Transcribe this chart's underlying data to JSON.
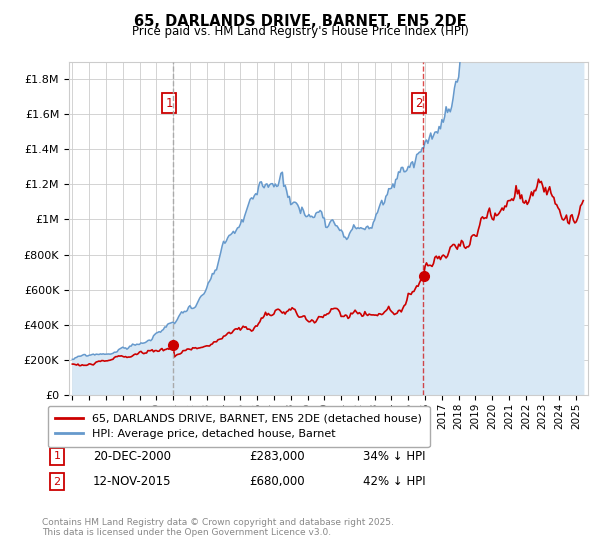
{
  "title": "65, DARLANDS DRIVE, BARNET, EN5 2DE",
  "subtitle": "Price paid vs. HM Land Registry's House Price Index (HPI)",
  "ylim": [
    0,
    1900000
  ],
  "yticks": [
    0,
    200000,
    400000,
    600000,
    800000,
    1000000,
    1200000,
    1400000,
    1600000,
    1800000
  ],
  "ytick_labels": [
    "£0",
    "£200K",
    "£400K",
    "£600K",
    "£800K",
    "£1M",
    "£1.2M",
    "£1.4M",
    "£1.6M",
    "£1.8M"
  ],
  "xmin": 1994.8,
  "xmax": 2025.7,
  "transaction1_x": 2001.0,
  "transaction1_date": "20-DEC-2000",
  "transaction1_price": "£283,000",
  "transaction1_hpi": "34% ↓ HPI",
  "transaction1_y": 283000,
  "transaction2_x": 2015.88,
  "transaction2_date": "12-NOV-2015",
  "transaction2_price": "£680,000",
  "transaction2_hpi": "42% ↓ HPI",
  "transaction2_y": 680000,
  "red_color": "#cc0000",
  "blue_line_color": "#6699cc",
  "blue_fill_color": "#d8e8f5",
  "vline1_color": "#aaaaaa",
  "vline2_color": "#cc0000",
  "legend_line1": "65, DARLANDS DRIVE, BARNET, EN5 2DE (detached house)",
  "legend_line2": "HPI: Average price, detached house, Barnet",
  "footer": "Contains HM Land Registry data © Crown copyright and database right 2025.\nThis data is licensed under the Open Government Licence v3.0.",
  "background_color": "#ffffff",
  "grid_color": "#cccccc"
}
